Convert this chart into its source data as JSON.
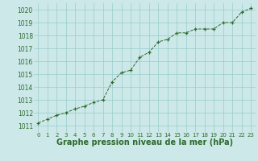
{
  "x": [
    0,
    1,
    2,
    3,
    4,
    5,
    6,
    7,
    8,
    9,
    10,
    11,
    12,
    13,
    14,
    15,
    16,
    17,
    18,
    19,
    20,
    21,
    22,
    23
  ],
  "y": [
    1011.2,
    1011.5,
    1011.8,
    1012.0,
    1012.3,
    1012.5,
    1012.8,
    1013.0,
    1014.4,
    1015.1,
    1015.3,
    1016.3,
    1016.7,
    1017.5,
    1017.7,
    1018.2,
    1018.2,
    1018.5,
    1018.5,
    1018.5,
    1019.0,
    1019.0,
    1019.8,
    1020.1
  ],
  "line_color": "#2d6a2d",
  "marker": "+",
  "marker_color": "#2d6a2d",
  "bg_color": "#cce8e8",
  "grid_color": "#99cccc",
  "xlabel": "Graphe pression niveau de la mer (hPa)",
  "xlabel_fontsize": 7,
  "ylabel_ticks": [
    1011,
    1012,
    1013,
    1014,
    1015,
    1016,
    1017,
    1018,
    1019,
    1020
  ],
  "ylim": [
    1010.5,
    1020.5
  ],
  "xlim": [
    -0.5,
    23.5
  ],
  "xticks": [
    0,
    1,
    2,
    3,
    4,
    5,
    6,
    7,
    8,
    9,
    10,
    11,
    12,
    13,
    14,
    15,
    16,
    17,
    18,
    19,
    20,
    21,
    22,
    23
  ],
  "tick_fontsize": 5,
  "ytick_fontsize": 5.5,
  "label_color": "#2d6a2d"
}
